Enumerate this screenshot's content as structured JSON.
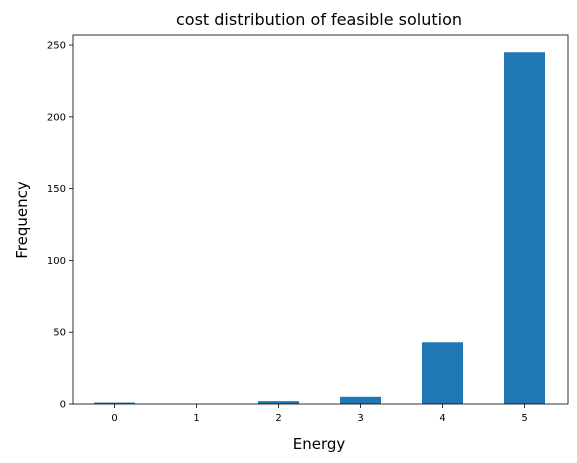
{
  "chart_data": {
    "type": "bar",
    "title": "cost distribution of feasible solution",
    "xlabel": "Energy",
    "ylabel": "Frequency",
    "categories": [
      "0",
      "1",
      "2",
      "3",
      "4",
      "5"
    ],
    "values": [
      1,
      0,
      2,
      5,
      43,
      245
    ],
    "ylim": [
      0,
      257
    ],
    "yticks": [
      0,
      50,
      100,
      150,
      200,
      250
    ],
    "bar_color": "#1f77b4",
    "grid": false,
    "legend": "none"
  }
}
